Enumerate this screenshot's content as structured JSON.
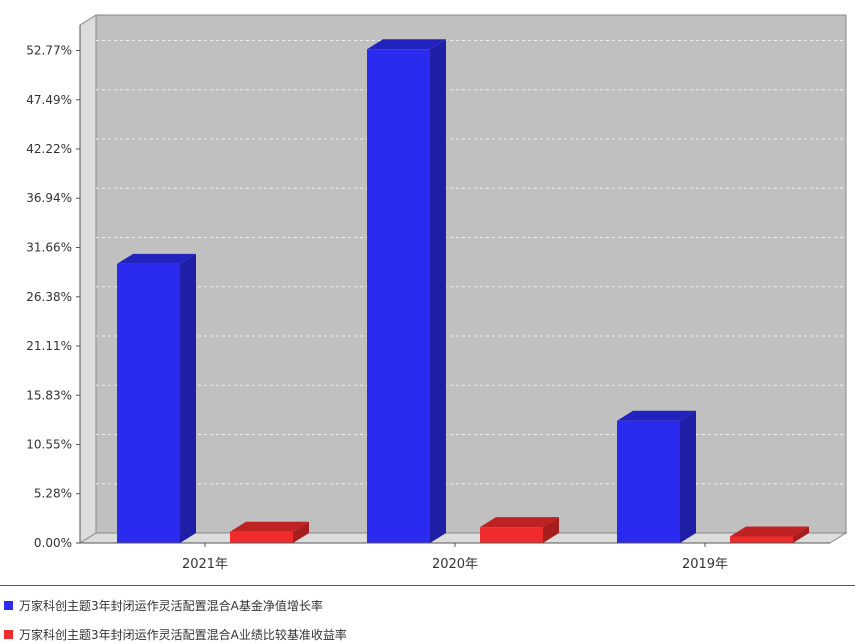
{
  "chart_data": {
    "type": "bar",
    "title": "",
    "xlabel": "",
    "ylabel": "",
    "categories": [
      "2021年",
      "2020年",
      "2019年"
    ],
    "series": [
      {
        "name": "万家科创主题3年封闭运作灵活配置混合A基金净值增长率",
        "values": [
          29.9,
          52.9,
          13.1
        ],
        "color": "#2b2bef"
      },
      {
        "name": "万家科创主题3年封闭运作灵活配置混合A业绩比较基准收益率",
        "values": [
          1.2,
          1.7,
          0.7
        ],
        "color": "#ef2b2b"
      }
    ],
    "yticks": [
      "0.00%",
      "5.28%",
      "10.55%",
      "15.83%",
      "21.11%",
      "26.38%",
      "31.66%",
      "36.94%",
      "42.22%",
      "47.49%",
      "52.77%"
    ],
    "ytick_values": [
      0,
      5.28,
      10.55,
      15.83,
      21.11,
      26.38,
      31.66,
      36.94,
      42.22,
      47.49,
      52.77
    ],
    "ylim": [
      0,
      55.5
    ],
    "grid": true,
    "legend_position": "bottom-left"
  }
}
